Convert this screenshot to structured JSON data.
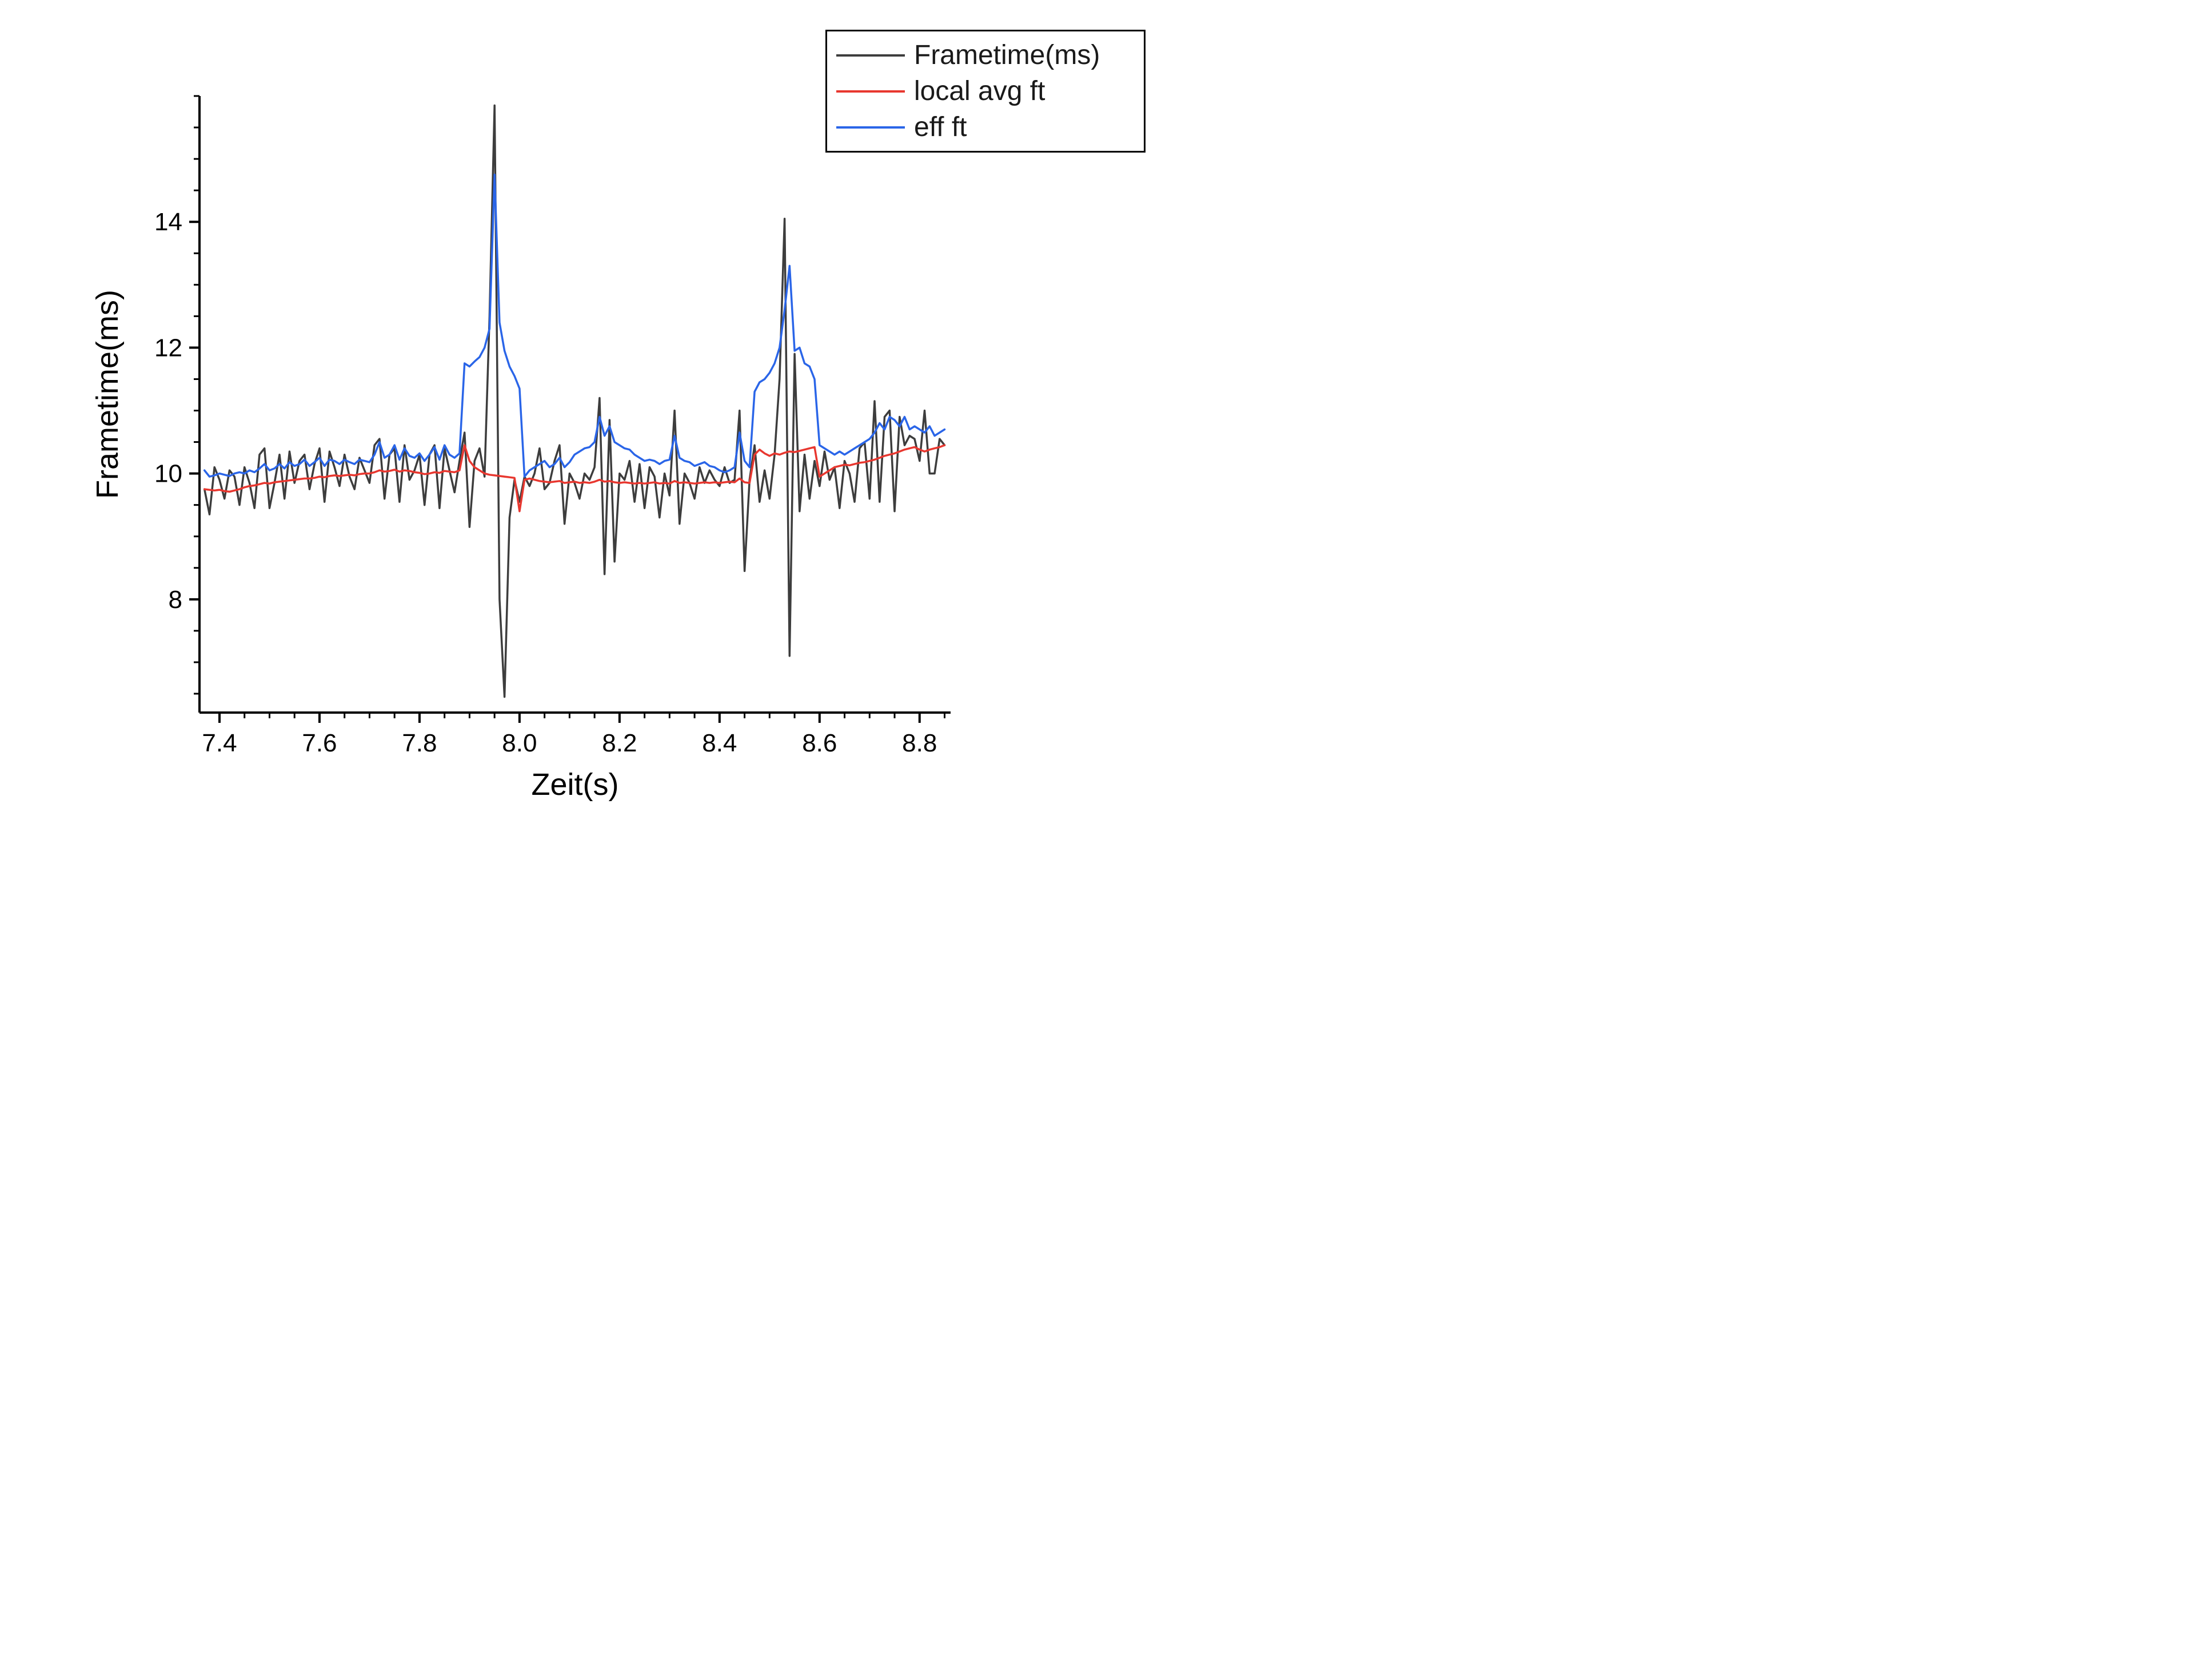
{
  "chart_data": {
    "type": "line",
    "title": "",
    "xlabel": "Zeit(s)",
    "ylabel": "Frametime(ms)",
    "xlim": [
      7.36,
      8.862
    ],
    "ylim": [
      6.2,
      16.0
    ],
    "x_major_ticks": [
      7.4,
      7.6,
      7.8,
      8.0,
      8.2,
      8.4,
      8.6,
      8.8
    ],
    "x_minor_step": 0.05,
    "y_major_ticks": [
      8,
      10,
      12,
      14
    ],
    "y_minor_step": 0.5,
    "grid": false,
    "legend_position": "top-right",
    "axis_color": "#000000",
    "x_start": 7.37,
    "x_step": 0.01,
    "series": [
      {
        "name": "Frametime(ms)",
        "color": "#3d3d3d",
        "values": [
          9.75,
          9.35,
          10.1,
          9.9,
          9.6,
          10.05,
          9.95,
          9.5,
          10.1,
          9.85,
          9.45,
          10.3,
          10.4,
          9.45,
          9.85,
          10.3,
          9.6,
          10.35,
          9.85,
          10.2,
          10.3,
          9.75,
          10.15,
          10.4,
          9.55,
          10.35,
          10.1,
          9.8,
          10.3,
          9.95,
          9.75,
          10.25,
          10.05,
          9.85,
          10.45,
          10.55,
          9.6,
          10.3,
          10.4,
          9.55,
          10.45,
          9.9,
          10.05,
          10.3,
          9.5,
          10.3,
          10.45,
          9.45,
          10.4,
          10.05,
          9.7,
          10.2,
          10.65,
          9.15,
          10.2,
          10.4,
          9.95,
          12.5,
          15.85,
          8.0,
          6.45,
          9.3,
          9.9,
          9.55,
          9.95,
          9.8,
          10.0,
          10.4,
          9.75,
          9.85,
          10.2,
          10.45,
          9.2,
          10.0,
          9.85,
          9.6,
          10.0,
          9.9,
          10.1,
          11.2,
          8.4,
          10.85,
          8.6,
          10.0,
          9.9,
          10.2,
          9.55,
          10.15,
          9.45,
          10.1,
          9.95,
          9.3,
          10.0,
          9.65,
          11.0,
          9.2,
          10.0,
          9.85,
          9.6,
          10.1,
          9.85,
          10.05,
          9.9,
          9.8,
          10.1,
          9.85,
          9.9,
          11.0,
          8.45,
          9.9,
          10.45,
          9.55,
          10.05,
          9.6,
          10.3,
          11.5,
          14.05,
          7.1,
          11.9,
          9.4,
          10.3,
          9.6,
          10.2,
          9.8,
          10.35,
          9.9,
          10.1,
          9.45,
          10.2,
          10.0,
          9.55,
          10.4,
          10.5,
          9.6,
          11.15,
          9.55,
          10.9,
          11.0,
          9.4,
          10.9,
          10.45,
          10.6,
          10.55,
          10.2,
          11.0,
          10.0,
          10.0,
          10.55,
          10.45
        ]
      },
      {
        "name": "local avg ft",
        "color": "#e8372f",
        "values": [
          9.75,
          9.74,
          9.73,
          9.74,
          9.72,
          9.71,
          9.73,
          9.75,
          9.78,
          9.8,
          9.81,
          9.83,
          9.85,
          9.84,
          9.86,
          9.87,
          9.88,
          9.89,
          9.9,
          9.91,
          9.92,
          9.92,
          9.93,
          9.95,
          9.94,
          9.96,
          9.97,
          9.96,
          9.97,
          9.98,
          9.97,
          9.99,
          10.0,
          10.0,
          10.02,
          10.05,
          10.03,
          10.04,
          10.06,
          10.03,
          10.05,
          10.04,
          10.02,
          10.01,
          9.99,
          10.0,
          10.02,
          10.01,
          10.04,
          10.03,
          10.02,
          10.05,
          10.45,
          10.2,
          10.1,
          10.05,
          10.0,
          9.98,
          9.97,
          9.96,
          9.95,
          9.94,
          9.93,
          9.4,
          9.9,
          9.92,
          9.9,
          9.88,
          9.87,
          9.86,
          9.87,
          9.88,
          9.85,
          9.86,
          9.87,
          9.85,
          9.86,
          9.85,
          9.87,
          9.9,
          9.87,
          9.88,
          9.86,
          9.85,
          9.86,
          9.85,
          9.84,
          9.85,
          9.84,
          9.85,
          9.86,
          9.84,
          9.85,
          9.84,
          9.88,
          9.85,
          9.86,
          9.85,
          9.84,
          9.85,
          9.86,
          9.85,
          9.86,
          9.85,
          9.86,
          9.87,
          9.86,
          9.92,
          9.86,
          9.85,
          10.3,
          10.38,
          10.32,
          10.28,
          10.32,
          10.3,
          10.33,
          10.35,
          10.34,
          10.36,
          10.38,
          10.4,
          10.42,
          9.95,
          10.0,
          10.05,
          10.1,
          10.12,
          10.14,
          10.13,
          10.15,
          10.17,
          10.18,
          10.2,
          10.22,
          10.25,
          10.28,
          10.3,
          10.32,
          10.35,
          10.38,
          10.4,
          10.42,
          10.38,
          10.35,
          10.38,
          10.4,
          10.42,
          10.45
        ]
      },
      {
        "name": "eff ft",
        "color": "#2a65e8",
        "values": [
          10.05,
          9.95,
          9.97,
          10.0,
          9.98,
          9.96,
          10.0,
          10.02,
          10.0,
          10.05,
          10.02,
          10.08,
          10.15,
          10.05,
          10.08,
          10.15,
          10.08,
          10.18,
          10.12,
          10.15,
          10.22,
          10.12,
          10.18,
          10.25,
          10.12,
          10.22,
          10.2,
          10.15,
          10.22,
          10.18,
          10.15,
          10.22,
          10.2,
          10.18,
          10.3,
          10.5,
          10.25,
          10.3,
          10.45,
          10.22,
          10.4,
          10.28,
          10.25,
          10.32,
          10.2,
          10.3,
          10.42,
          10.22,
          10.45,
          10.3,
          10.25,
          10.32,
          11.75,
          11.7,
          11.78,
          11.85,
          12.0,
          12.3,
          14.75,
          12.4,
          11.95,
          11.7,
          11.55,
          11.35,
          9.95,
          10.05,
          10.1,
          10.15,
          10.2,
          10.1,
          10.15,
          10.25,
          10.1,
          10.18,
          10.3,
          10.35,
          10.4,
          10.42,
          10.5,
          10.9,
          10.6,
          10.75,
          10.5,
          10.45,
          10.4,
          10.38,
          10.3,
          10.25,
          10.2,
          10.22,
          10.2,
          10.15,
          10.2,
          10.22,
          10.6,
          10.25,
          10.2,
          10.18,
          10.12,
          10.15,
          10.18,
          10.12,
          10.1,
          10.05,
          10.02,
          10.05,
          10.1,
          10.65,
          10.2,
          10.1,
          11.3,
          11.45,
          11.5,
          11.6,
          11.75,
          12.0,
          12.6,
          13.3,
          11.95,
          12.0,
          11.75,
          11.7,
          11.5,
          10.45,
          10.4,
          10.35,
          10.3,
          10.35,
          10.3,
          10.35,
          10.4,
          10.45,
          10.5,
          10.55,
          10.65,
          10.8,
          10.7,
          10.9,
          10.85,
          10.75,
          10.9,
          10.7,
          10.75,
          10.7,
          10.65,
          10.75,
          10.6,
          10.65,
          10.7
        ]
      }
    ]
  }
}
